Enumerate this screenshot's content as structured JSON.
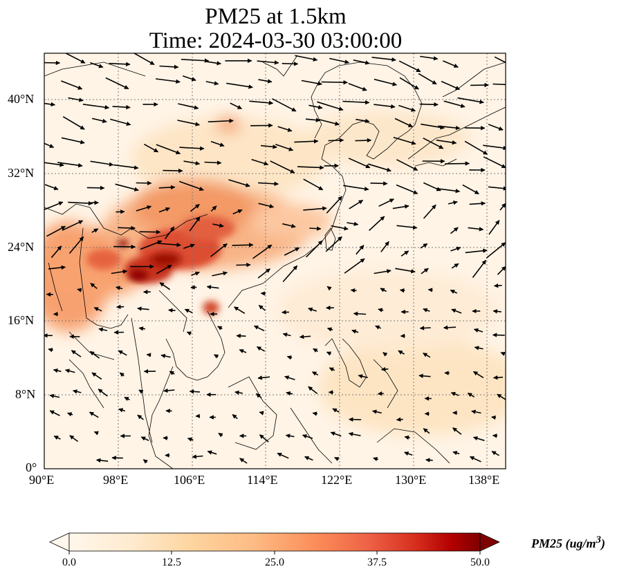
{
  "title": {
    "line1": "PM25 at 1.5km",
    "line2": "Time: 2024-03-30 03:00:00"
  },
  "axes": {
    "lat_ticks": [
      "0°",
      "8°N",
      "16°N",
      "24°N",
      "32°N",
      "40°N"
    ],
    "lon_ticks": [
      "90°E",
      "98°E",
      "106°E",
      "114°E",
      "122°E",
      "130°E",
      "138°E"
    ],
    "lon_range": [
      90,
      140
    ],
    "lat_range": [
      0,
      45
    ],
    "gridlines": "dotted"
  },
  "colorbar": {
    "label": "PM25 (ug/m",
    "label_sup": "3",
    "label_end": ")",
    "ticks": [
      "0.0",
      "12.5",
      "25.0",
      "37.5",
      "50.0"
    ],
    "range": [
      0,
      50
    ],
    "colormap": "OrRd",
    "extend": "both"
  },
  "colors": {
    "low": "#fff7ec",
    "mid": "#fc8d59",
    "high": "#7f0000"
  }
}
